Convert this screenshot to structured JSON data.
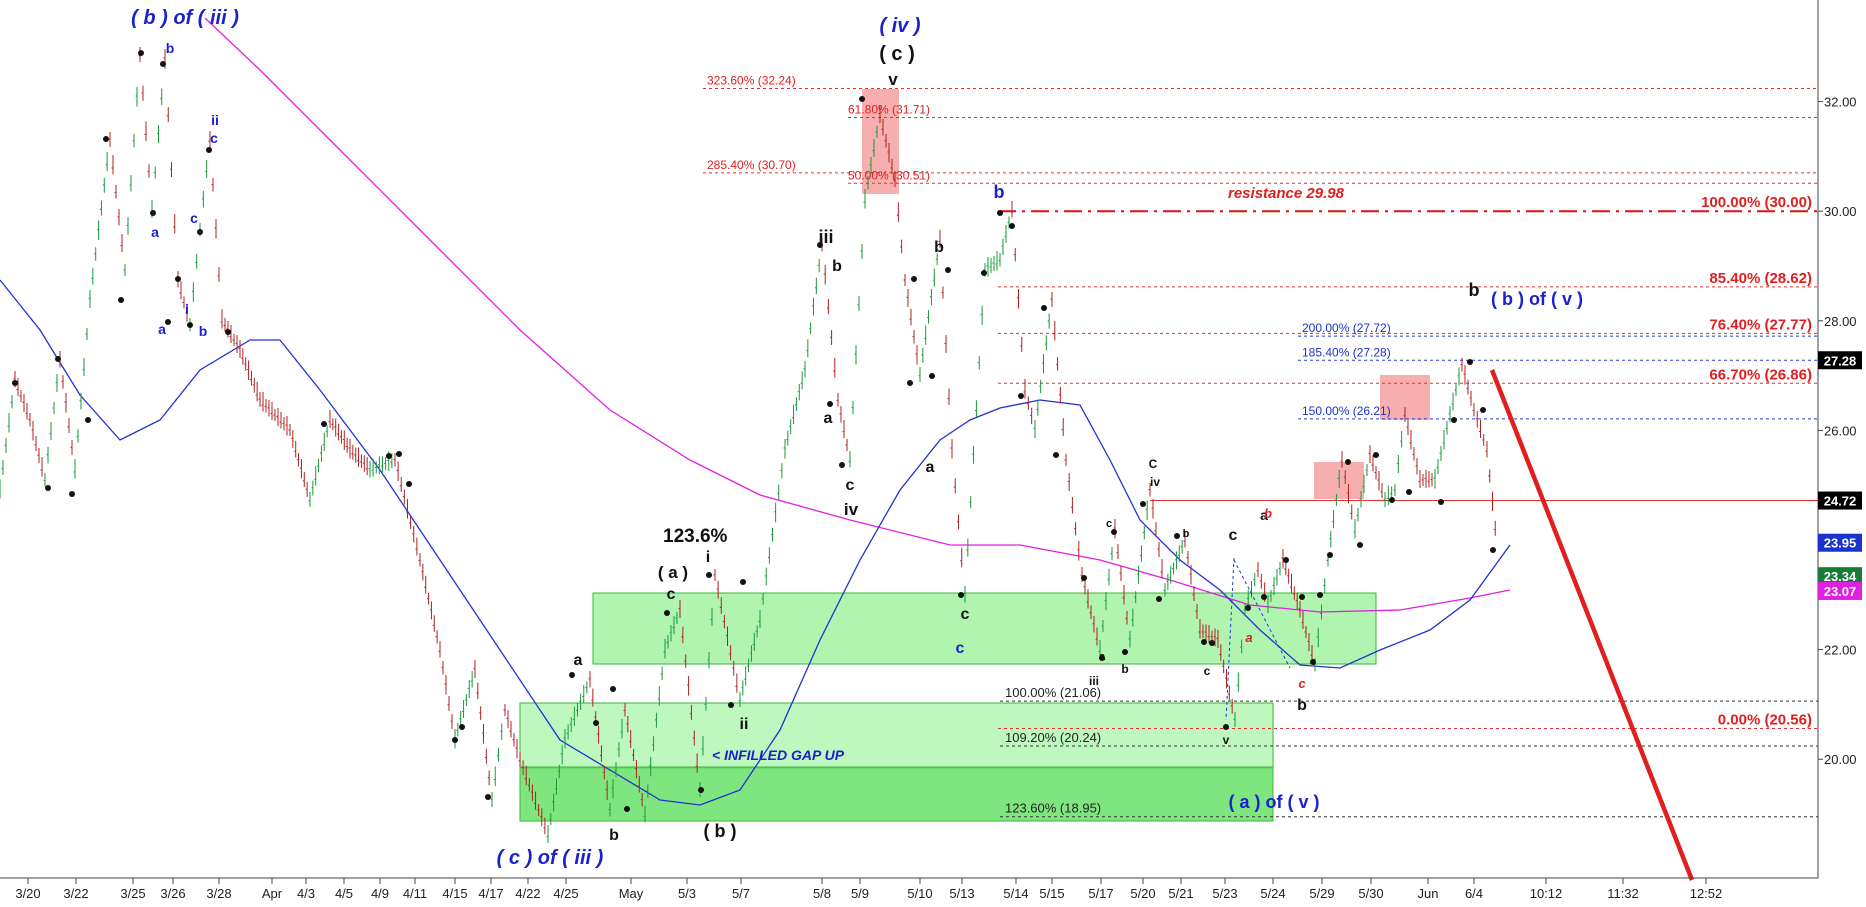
{
  "chart_data": {
    "type": "candlestick",
    "symbol_last_price": "27.28",
    "ylim": [
      18.1,
      33.1
    ],
    "y_ticks": [
      "20.00",
      "22.00",
      "24.00",
      "26.00",
      "28.00",
      "30.00",
      "32.00"
    ],
    "x_ticks": [
      "3/20",
      "3/22",
      "3/25",
      "3/26",
      "3/28",
      "Apr",
      "4/3",
      "4/5",
      "4/9",
      "4/11",
      "4/15",
      "4/17",
      "4/22",
      "4/25",
      "May",
      "5/3",
      "5/7",
      "5/8",
      "5/9",
      "5/10",
      "5/13",
      "5/14",
      "5/15",
      "5/17",
      "5/20",
      "5/21",
      "5/23",
      "5/24",
      "5/29",
      "5/30",
      "Jun",
      "6/4",
      "10:12",
      "11:32",
      "12:52"
    ],
    "price_badges": [
      {
        "text": "27.28",
        "price": 27.28,
        "color": "#000000"
      },
      {
        "text": "24.72",
        "price": 24.72,
        "color": "#000000"
      },
      {
        "text": "23.95",
        "price": 23.95,
        "color": "#1a33cc"
      },
      {
        "text": "23.34",
        "price": 23.34,
        "color": "#1a7a3a"
      },
      {
        "text": "23.07",
        "price": 23.07,
        "color": "#e020e0"
      }
    ],
    "fib_levels_red_right": [
      {
        "text": "100.00% (30.00)",
        "price": 30.0
      },
      {
        "text": "85.40% (28.62)",
        "price": 28.62
      },
      {
        "text": "76.40% (27.77)",
        "price": 27.77
      },
      {
        "text": "66.70% (26.86)",
        "price": 26.86
      },
      {
        "text": "0.00% (20.56)",
        "price": 20.56
      }
    ],
    "fib_levels_blue": [
      {
        "text": "200.00% (27.72)",
        "price": 27.72
      },
      {
        "text": "185.40% (27.28)",
        "price": 27.28
      },
      {
        "text": "150.00% (26.21)",
        "price": 26.21
      }
    ],
    "fib_levels_dark": [
      {
        "text": "100.00% (21.06)",
        "price": 21.06
      },
      {
        "text": "109.20% (20.24)",
        "price": 20.24
      },
      {
        "text": "123.60% (18.95)",
        "price": 18.95
      }
    ],
    "fib_levels_top_red": [
      {
        "text": "323.60% (32.24)",
        "price": 32.24
      },
      {
        "text": "61.80% (31.71)",
        "price": 31.71
      },
      {
        "text": "285.40% (30.70)",
        "price": 30.7
      },
      {
        "text": "50.00% (30.51)",
        "price": 30.51
      }
    ],
    "resistance_label": "resistance 29.98",
    "gap_label": "< INFILLED GAP UP",
    "ratio_label": "123.6%",
    "wave_labels_blue": [
      "( b ) of ( iii )",
      "( iv )",
      "( c ) of ( iii )",
      "( b ) of ( v )",
      "( a ) of ( v )",
      "b",
      "ii",
      "c",
      "a",
      "c",
      "i",
      "b",
      "a",
      "b",
      "c"
    ],
    "wave_labels_black": [
      "( c )",
      "v",
      "iii",
      "b",
      "a",
      "c",
      "iv",
      "b",
      "a",
      "c",
      "( a )",
      "i",
      "c",
      "ii",
      "( b )",
      "a",
      "b",
      "c",
      "a",
      "b",
      "b",
      "C",
      "iv",
      "c",
      "a",
      "b",
      "c",
      "v",
      "iii",
      "b"
    ],
    "wave_labels_red": [
      "b",
      "a",
      "c"
    ]
  }
}
